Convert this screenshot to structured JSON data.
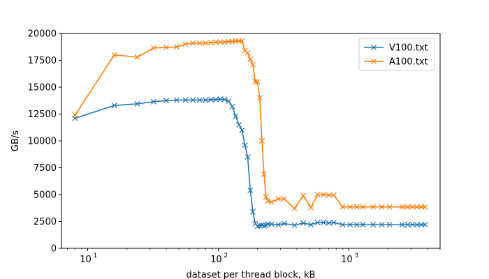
{
  "chart_data": {
    "type": "line",
    "xscale": "log",
    "xlabel": "dataset per thread block, kB",
    "ylabel": "GB/s",
    "xlim": [
      6.3,
      5000
    ],
    "ylim": [
      0,
      20000
    ],
    "x_ticks": [
      10,
      100,
      1000
    ],
    "x_tick_labels": [
      {
        "base": "10",
        "exp": "1"
      },
      {
        "base": "10",
        "exp": "2"
      },
      {
        "base": "10",
        "exp": "3"
      }
    ],
    "y_ticks": [
      0,
      2500,
      5000,
      7500,
      10000,
      12500,
      15000,
      17500,
      20000
    ],
    "y_tick_labels": [
      "0",
      "2500",
      "5000",
      "7500",
      "10000",
      "12500",
      "15000",
      "17500",
      "20000"
    ],
    "legend_position": "top-right",
    "series": [
      {
        "name": "V100.txt",
        "color": "#1f77b4",
        "x": [
          8,
          16,
          24,
          32,
          40,
          48,
          56,
          64,
          72,
          80,
          88,
          96,
          104,
          112,
          120,
          128,
          136,
          144,
          152,
          160,
          168,
          176,
          184,
          192,
          200,
          208,
          216,
          224,
          232,
          240,
          256,
          288,
          320,
          384,
          448,
          512,
          576,
          640,
          704,
          768,
          896,
          1024,
          1152,
          1280,
          1536,
          1792,
          2048,
          2560,
          2816,
          3072,
          3328,
          3584,
          3840
        ],
        "y": [
          12100,
          13300,
          13450,
          13650,
          13750,
          13800,
          13800,
          13800,
          13800,
          13800,
          13850,
          13850,
          13900,
          13850,
          13700,
          13200,
          12300,
          11500,
          11000,
          9600,
          8500,
          5400,
          3400,
          2300,
          2050,
          2100,
          2150,
          2100,
          2150,
          2250,
          2250,
          2200,
          2300,
          2150,
          2350,
          2200,
          2400,
          2400,
          2350,
          2400,
          2200,
          2200,
          2200,
          2200,
          2200,
          2200,
          2200,
          2200,
          2200,
          2200,
          2200,
          2200,
          2200
        ]
      },
      {
        "name": "A100.txt",
        "color": "#ff7f0e",
        "x": [
          8,
          16,
          24,
          32,
          40,
          48,
          56,
          64,
          72,
          80,
          88,
          96,
          104,
          112,
          120,
          128,
          136,
          144,
          152,
          160,
          168,
          176,
          184,
          192,
          200,
          208,
          216,
          224,
          232,
          240,
          256,
          288,
          320,
          384,
          448,
          512,
          576,
          640,
          704,
          768,
          896,
          1024,
          1152,
          1280,
          1536,
          1792,
          2048,
          2560,
          2816,
          3072,
          3328,
          3584,
          3840
        ],
        "y": [
          12400,
          18000,
          17800,
          18650,
          18700,
          18750,
          19000,
          19100,
          19100,
          19100,
          19150,
          19200,
          19200,
          19200,
          19250,
          19250,
          19300,
          19300,
          19300,
          18400,
          18200,
          17600,
          17100,
          15500,
          15500,
          14000,
          10000,
          6900,
          4800,
          4400,
          4300,
          4600,
          4600,
          3700,
          4900,
          3800,
          5000,
          5000,
          4950,
          4950,
          3850,
          3850,
          3850,
          3850,
          3850,
          3850,
          3850,
          3850,
          3850,
          3850,
          3850,
          3850,
          3850
        ]
      }
    ]
  }
}
